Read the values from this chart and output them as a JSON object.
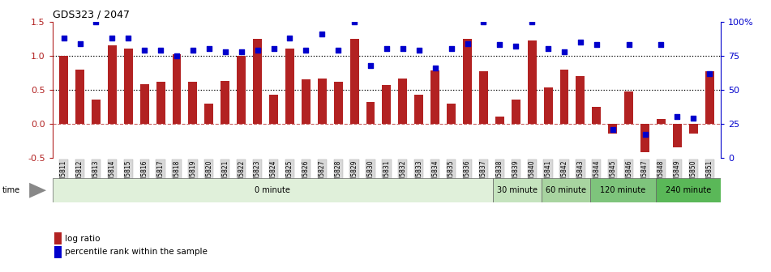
{
  "title": "GDS323 / 2047",
  "samples": [
    "GSM5811",
    "GSM5812",
    "GSM5813",
    "GSM5814",
    "GSM5815",
    "GSM5816",
    "GSM5817",
    "GSM5818",
    "GSM5819",
    "GSM5820",
    "GSM5821",
    "GSM5822",
    "GSM5823",
    "GSM5824",
    "GSM5825",
    "GSM5826",
    "GSM5827",
    "GSM5828",
    "GSM5829",
    "GSM5830",
    "GSM5831",
    "GSM5832",
    "GSM5833",
    "GSM5834",
    "GSM5835",
    "GSM5836",
    "GSM5837",
    "GSM5838",
    "GSM5839",
    "GSM5840",
    "GSM5841",
    "GSM5842",
    "GSM5843",
    "GSM5844",
    "GSM5845",
    "GSM5846",
    "GSM5847",
    "GSM5848",
    "GSM5849",
    "GSM5850",
    "GSM5851"
  ],
  "log_ratio": [
    1.0,
    0.8,
    0.36,
    1.15,
    1.1,
    0.58,
    0.62,
    1.02,
    0.62,
    0.3,
    0.63,
    1.0,
    1.25,
    0.43,
    1.1,
    0.65,
    0.67,
    0.62,
    1.25,
    0.32,
    0.57,
    0.67,
    0.43,
    0.78,
    0.3,
    1.25,
    0.77,
    0.1,
    0.35,
    1.23,
    0.53,
    0.8,
    0.7,
    0.25,
    -0.15,
    0.48,
    -0.42,
    0.07,
    -0.35,
    -0.15,
    0.77
  ],
  "percentile": [
    88,
    84,
    100,
    88,
    88,
    79,
    79,
    75,
    79,
    80,
    78,
    78,
    79,
    80,
    88,
    79,
    91,
    79,
    100,
    68,
    80,
    80,
    79,
    66,
    80,
    84,
    100,
    83,
    82,
    100,
    80,
    78,
    85,
    83,
    21,
    83,
    17,
    83,
    30,
    29,
    62
  ],
  "time_groups": [
    {
      "label": "0 minute",
      "start": 0,
      "end": 27,
      "color": "#e0f0da"
    },
    {
      "label": "30 minute",
      "start": 27,
      "end": 30,
      "color": "#c5e3be"
    },
    {
      "label": "60 minute",
      "start": 30,
      "end": 33,
      "color": "#a8d4a0"
    },
    {
      "label": "120 minute",
      "start": 33,
      "end": 37,
      "color": "#7ec47c"
    },
    {
      "label": "240 minute",
      "start": 37,
      "end": 41,
      "color": "#5ab858"
    }
  ],
  "bar_color": "#b22222",
  "dot_color": "#0000cc",
  "ylim_left": [
    -0.5,
    1.5
  ],
  "ylim_right": [
    0,
    100
  ],
  "yticks_left": [
    -0.5,
    0.0,
    0.5,
    1.0,
    1.5
  ],
  "yticks_right": [
    0,
    25,
    50,
    75,
    100
  ],
  "hlines_dotted": [
    0.5,
    1.0
  ],
  "zero_line": 0.0,
  "legend_items": [
    {
      "label": "log ratio",
      "color": "#b22222"
    },
    {
      "label": "percentile rank within the sample",
      "color": "#0000cc"
    }
  ]
}
